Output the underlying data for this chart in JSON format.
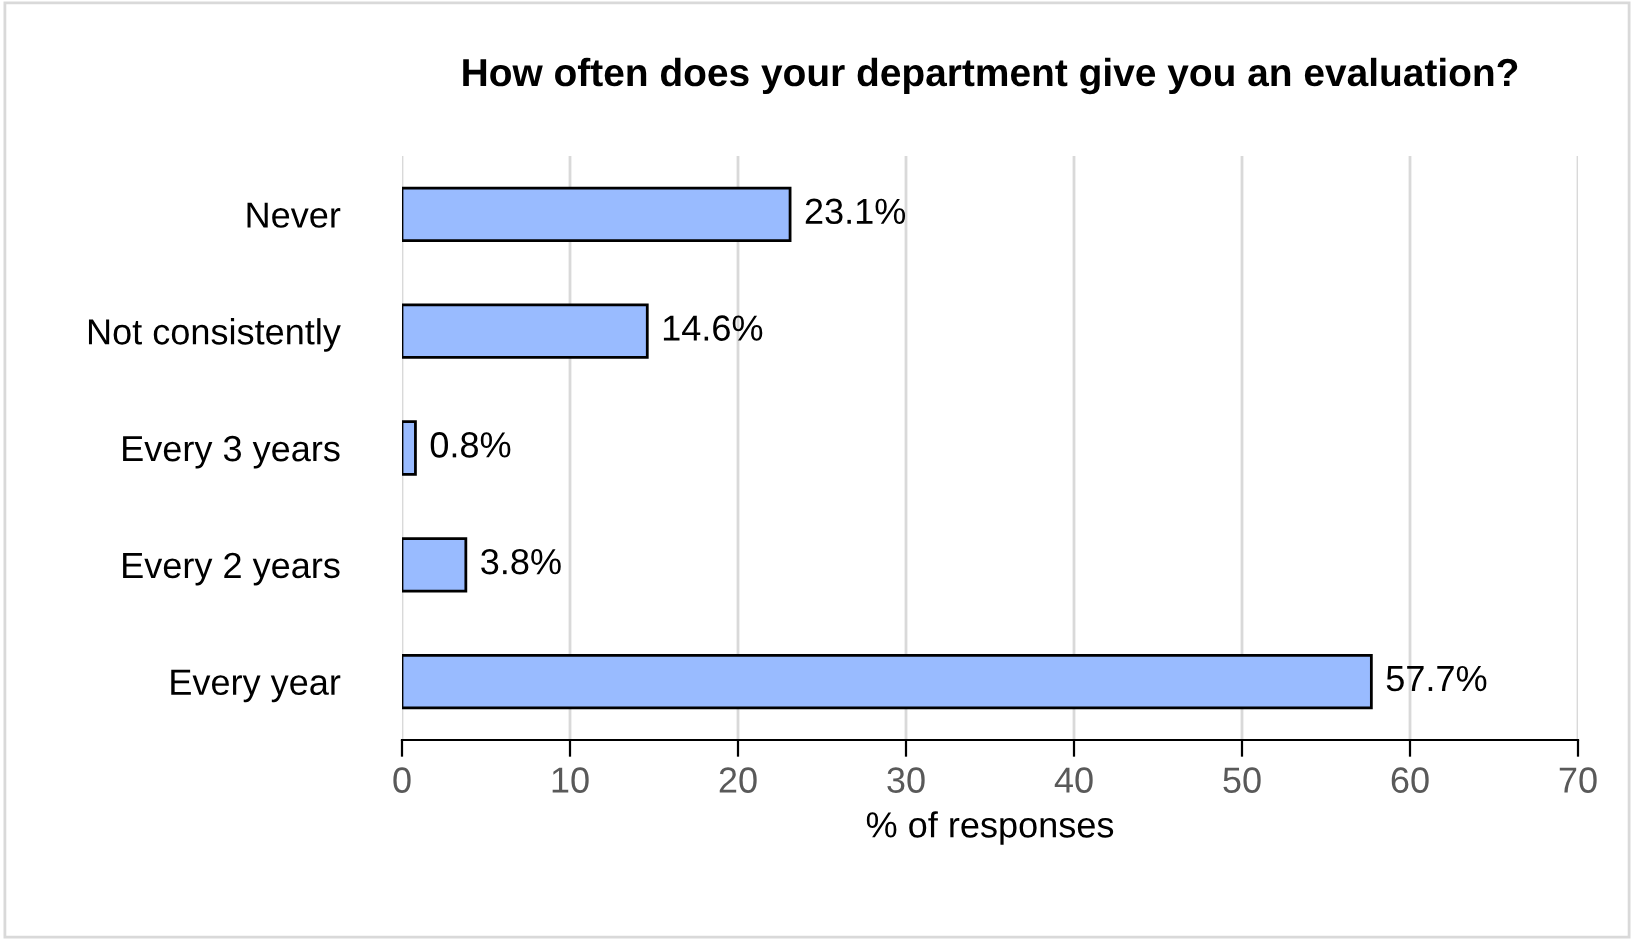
{
  "chart_data": {
    "type": "bar",
    "orientation": "horizontal",
    "title": "How often does your department give you an evaluation?",
    "xlabel": "% of responses",
    "categories": [
      "Never",
      "Not consistently",
      "Every 3 years",
      "Every 2 years",
      "Every year"
    ],
    "values": [
      23.1,
      14.6,
      0.8,
      3.8,
      57.7
    ],
    "value_labels": [
      "23.1%",
      "14.6%",
      "0.8%",
      "3.8%",
      "57.7%"
    ],
    "color": "#99bbff",
    "xlim": [
      0,
      70
    ],
    "xticks": [
      0,
      10,
      20,
      30,
      40,
      50,
      60,
      70
    ],
    "grid": "x",
    "legend": false
  }
}
